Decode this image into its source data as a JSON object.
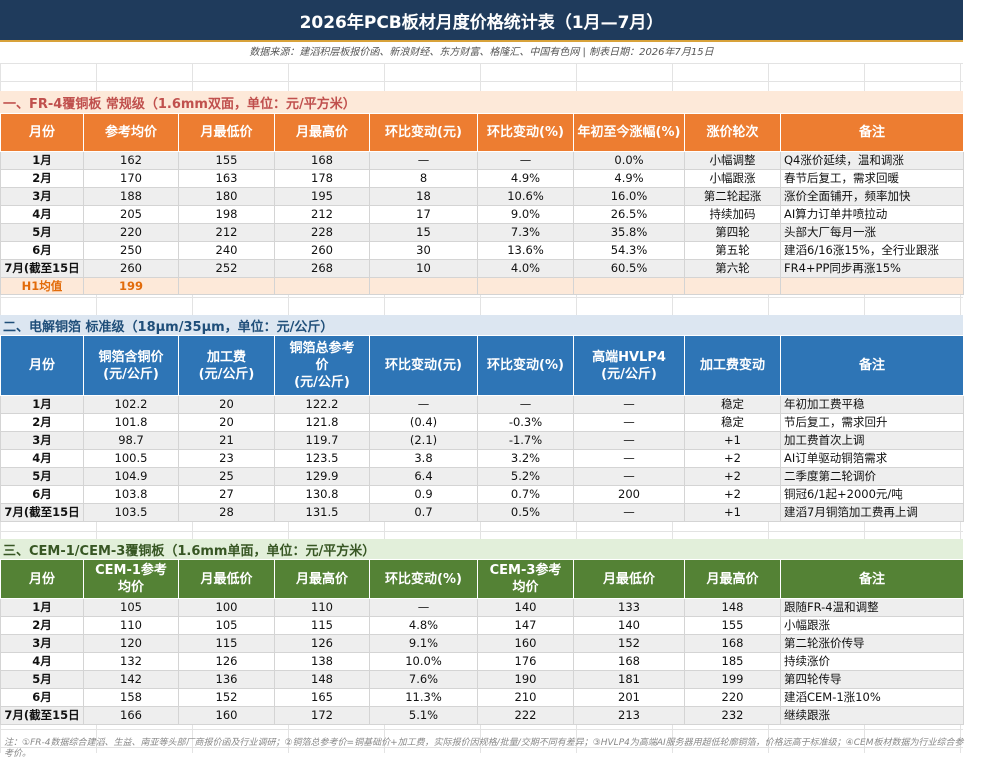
{
  "title": "2026年PCB板材月度价格统计表（1月—7月）",
  "source": "数据来源：建滔积层板报价函、新浪财经、东方财富、格隆汇、中国有色网 | 制表日期：2026年7月15日",
  "sections": {
    "s1": {
      "heading": "一、FR-4覆铜板 常规级（1.6mm双面，单位：元/平方米）",
      "headers": [
        "月份",
        "参考均价",
        "月最低价",
        "月最高价",
        "环比变动(元)",
        "环比变动(%)",
        "年初至今涨幅(%)",
        "涨价轮次",
        "备注"
      ],
      "rows": [
        [
          "1月",
          "162",
          "155",
          "168",
          "—",
          "—",
          "0.0%",
          "小幅调整",
          "Q4涨价延续，温和调涨"
        ],
        [
          "2月",
          "170",
          "163",
          "178",
          "8",
          "4.9%",
          "4.9%",
          "小幅跟涨",
          "春节后复工，需求回暖"
        ],
        [
          "3月",
          "188",
          "180",
          "195",
          "18",
          "10.6%",
          "16.0%",
          "第二轮起涨",
          "涨价全面铺开，频率加快"
        ],
        [
          "4月",
          "205",
          "198",
          "212",
          "17",
          "9.0%",
          "26.5%",
          "持续加码",
          "AI算力订单井喷拉动"
        ],
        [
          "5月",
          "220",
          "212",
          "228",
          "15",
          "7.3%",
          "35.8%",
          "第四轮",
          "头部大厂每月一涨"
        ],
        [
          "6月",
          "250",
          "240",
          "260",
          "30",
          "13.6%",
          "54.3%",
          "第五轮",
          "建滔6/16涨15%，全行业跟涨"
        ],
        [
          "7月(截至15日",
          "260",
          "252",
          "268",
          "10",
          "4.0%",
          "60.5%",
          "第六轮",
          "FR4+PP同步再涨15%"
        ]
      ],
      "avg_label": "H1均值",
      "avg_value": "199"
    },
    "s2": {
      "heading": "二、电解铜箔 标准级（18μm/35μm，单位：元/公斤）",
      "headers": [
        "月份",
        "铜箔含铜价\n(元/公斤)",
        "加工费\n(元/公斤)",
        "铜箔总参考\n价\n(元/公斤)",
        "环比变动(元)",
        "环比变动(%)",
        "高端HVLP4\n(元/公斤)",
        "加工费变动",
        "备注"
      ],
      "rows": [
        [
          "1月",
          "102.2",
          "20",
          "122.2",
          "—",
          "—",
          "—",
          "稳定",
          "年初加工费平稳"
        ],
        [
          "2月",
          "101.8",
          "20",
          "121.8",
          "(0.4)",
          "-0.3%",
          "—",
          "稳定",
          "节后复工，需求回升"
        ],
        [
          "3月",
          "98.7",
          "21",
          "119.7",
          "(2.1)",
          "-1.7%",
          "—",
          "+1",
          "加工费首次上调"
        ],
        [
          "4月",
          "100.5",
          "23",
          "123.5",
          "3.8",
          "3.2%",
          "—",
          "+2",
          "AI订单驱动铜箔需求"
        ],
        [
          "5月",
          "104.9",
          "25",
          "129.9",
          "6.4",
          "5.2%",
          "—",
          "+2",
          "二季度第二轮调价"
        ],
        [
          "6月",
          "103.8",
          "27",
          "130.8",
          "0.9",
          "0.7%",
          "200",
          "+2",
          "铜冠6/1起+2000元/吨"
        ],
        [
          "7月(截至15日",
          "103.5",
          "28",
          "131.5",
          "0.7",
          "0.5%",
          "—",
          "+1",
          "建滔7月铜箔加工费再上调"
        ]
      ]
    },
    "s3": {
      "heading": "三、CEM-1/CEM-3覆铜板（1.6mm单面，单位：元/平方米）",
      "headers": [
        "月份",
        "CEM-1参考\n均价",
        "月最低价",
        "月最高价",
        "环比变动(%)",
        "CEM-3参考\n均价",
        "月最低价",
        "月最高价",
        "备注"
      ],
      "rows": [
        [
          "1月",
          "105",
          "100",
          "110",
          "—",
          "140",
          "133",
          "148",
          "跟随FR-4温和调整"
        ],
        [
          "2月",
          "110",
          "105",
          "115",
          "4.8%",
          "147",
          "140",
          "155",
          "小幅跟涨"
        ],
        [
          "3月",
          "120",
          "115",
          "126",
          "9.1%",
          "160",
          "152",
          "168",
          "第二轮涨价传导"
        ],
        [
          "4月",
          "132",
          "126",
          "138",
          "10.0%",
          "176",
          "168",
          "185",
          "持续涨价"
        ],
        [
          "5月",
          "142",
          "136",
          "148",
          "7.6%",
          "190",
          "181",
          "199",
          "第四轮传导"
        ],
        [
          "6月",
          "158",
          "152",
          "165",
          "11.3%",
          "210",
          "201",
          "220",
          "建滔CEM-1涨10%"
        ],
        [
          "7月(截至15日",
          "166",
          "160",
          "172",
          "5.1%",
          "222",
          "213",
          "232",
          "继续跟涨"
        ]
      ]
    }
  },
  "footer": "注：①FR-4数据综合建滔、生益、南亚等头部厂商报价函及行业调研；②铜箔总参考价=铜基础价+加工费，实际报价因规格/批量/交期不同有差异；③HVLP4为高端AI服务器用超低轮廓铜箔，价格远高于标准级；④CEM板材数据为行业综合参考价。",
  "colors": {
    "title_bg": "#1f3b5c",
    "fr4": "#ed7d31",
    "copper": "#2e75b6",
    "cem": "#548235"
  }
}
